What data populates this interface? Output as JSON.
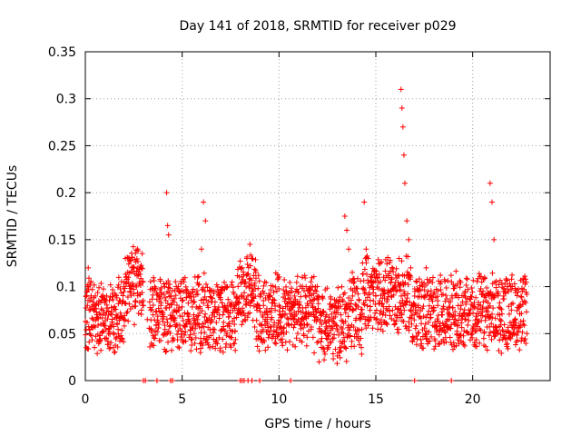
{
  "chart_data": {
    "type": "scatter",
    "title": "Day 141 of 2018, SRMTID for receiver p029",
    "xlabel": "GPS time / hours",
    "ylabel": "SRMTID / TECUs",
    "xlim": [
      0,
      24
    ],
    "ylim": [
      0,
      0.35
    ],
    "x_ticks": [
      0,
      5,
      10,
      15,
      20
    ],
    "x_tick_labels": [
      "0",
      "5",
      "10",
      "15",
      "20"
    ],
    "y_ticks": [
      0,
      0.05,
      0.1,
      0.15,
      0.2,
      0.25,
      0.3,
      0.35
    ],
    "y_tick_labels": [
      "0",
      "0.05",
      "0.1",
      "0.15",
      "0.2",
      "0.25",
      "0.3",
      "0.35"
    ],
    "grid": true,
    "marker": "+",
    "series_color": "#ff0000",
    "zero_value_times": [
      3.0,
      3.1,
      3.7,
      4.4,
      4.5,
      8.0,
      8.1,
      8.2,
      8.4,
      8.6,
      9.0,
      10.6,
      17.0,
      18.9
    ],
    "series": [
      {
        "name": "SRMTID",
        "note": "dense cloud of several thousand points; representative sample (hour, TECU)",
        "points": [
          [
            0.05,
            0.035
          ],
          [
            0.1,
            0.1
          ],
          [
            0.15,
            0.12
          ],
          [
            0.2,
            0.075
          ],
          [
            0.3,
            0.09
          ],
          [
            0.4,
            0.065
          ],
          [
            0.5,
            0.08
          ],
          [
            0.6,
            0.07
          ],
          [
            0.7,
            0.085
          ],
          [
            0.8,
            0.06
          ],
          [
            0.9,
            0.075
          ],
          [
            1.0,
            0.045
          ],
          [
            1.1,
            0.09
          ],
          [
            1.2,
            0.055
          ],
          [
            1.3,
            0.035
          ],
          [
            1.4,
            0.06
          ],
          [
            1.5,
            0.03
          ],
          [
            1.6,
            0.07
          ],
          [
            1.7,
            0.05
          ],
          [
            1.8,
            0.085
          ],
          [
            1.9,
            0.045
          ],
          [
            2.0,
            0.065
          ],
          [
            2.1,
            0.11
          ],
          [
            2.2,
            0.13
          ],
          [
            2.3,
            0.095
          ],
          [
            2.4,
            0.1
          ],
          [
            2.5,
            0.12
          ],
          [
            2.6,
            0.085
          ],
          [
            2.7,
            0.14
          ],
          [
            2.8,
            0.105
          ],
          [
            2.9,
            0.075
          ],
          [
            3.0,
            0.08
          ],
          [
            3.2,
            0.065
          ],
          [
            3.4,
            0.055
          ],
          [
            3.5,
            0.07
          ],
          [
            3.6,
            0.045
          ],
          [
            3.8,
            0.06
          ],
          [
            3.9,
            0.08
          ],
          [
            4.0,
            0.07
          ],
          [
            4.1,
            0.1
          ],
          [
            4.2,
            0.2
          ],
          [
            4.25,
            0.165
          ],
          [
            4.3,
            0.155
          ],
          [
            4.4,
            0.09
          ],
          [
            4.6,
            0.075
          ],
          [
            4.8,
            0.1
          ],
          [
            5.0,
            0.085
          ],
          [
            5.2,
            0.06
          ],
          [
            5.4,
            0.09
          ],
          [
            5.6,
            0.07
          ],
          [
            5.8,
            0.11
          ],
          [
            6.0,
            0.14
          ],
          [
            6.1,
            0.19
          ],
          [
            6.2,
            0.17
          ],
          [
            6.3,
            0.08
          ],
          [
            6.5,
            0.065
          ],
          [
            6.7,
            0.075
          ],
          [
            6.9,
            0.09
          ],
          [
            7.1,
            0.07
          ],
          [
            7.3,
            0.1
          ],
          [
            7.5,
            0.08
          ],
          [
            7.7,
            0.06
          ],
          [
            7.9,
            0.075
          ],
          [
            8.1,
            0.12
          ],
          [
            8.3,
            0.1
          ],
          [
            8.5,
            0.145
          ],
          [
            8.6,
            0.13
          ],
          [
            8.8,
            0.115
          ],
          [
            9.0,
            0.06
          ],
          [
            9.2,
            0.08
          ],
          [
            9.4,
            0.07
          ],
          [
            9.6,
            0.065
          ],
          [
            9.8,
            0.075
          ],
          [
            10.0,
            0.08
          ],
          [
            10.2,
            0.07
          ],
          [
            10.4,
            0.06
          ],
          [
            10.6,
            0.075
          ],
          [
            10.8,
            0.09
          ],
          [
            11.0,
            0.065
          ],
          [
            11.2,
            0.11
          ],
          [
            11.4,
            0.1
          ],
          [
            11.6,
            0.085
          ],
          [
            11.8,
            0.07
          ],
          [
            12.0,
            0.09
          ],
          [
            12.2,
            0.06
          ],
          [
            12.4,
            0.05
          ],
          [
            12.6,
            0.065
          ],
          [
            12.8,
            0.08
          ],
          [
            13.0,
            0.055
          ],
          [
            13.2,
            0.07
          ],
          [
            13.4,
            0.175
          ],
          [
            13.5,
            0.16
          ],
          [
            13.6,
            0.14
          ],
          [
            13.8,
            0.09
          ],
          [
            14.0,
            0.08
          ],
          [
            14.2,
            0.07
          ],
          [
            14.4,
            0.19
          ],
          [
            14.5,
            0.14
          ],
          [
            14.6,
            0.13
          ],
          [
            14.8,
            0.1
          ],
          [
            15.0,
            0.09
          ],
          [
            15.2,
            0.085
          ],
          [
            15.4,
            0.11
          ],
          [
            15.6,
            0.075
          ],
          [
            15.8,
            0.09
          ],
          [
            16.0,
            0.1
          ],
          [
            16.2,
            0.13
          ],
          [
            16.3,
            0.31
          ],
          [
            16.35,
            0.29
          ],
          [
            16.4,
            0.27
          ],
          [
            16.45,
            0.24
          ],
          [
            16.5,
            0.21
          ],
          [
            16.6,
            0.17
          ],
          [
            16.7,
            0.15
          ],
          [
            16.8,
            0.12
          ],
          [
            17.0,
            0.09
          ],
          [
            17.2,
            0.08
          ],
          [
            17.4,
            0.1
          ],
          [
            17.6,
            0.12
          ],
          [
            17.8,
            0.09
          ],
          [
            18.0,
            0.075
          ],
          [
            18.2,
            0.085
          ],
          [
            18.4,
            0.07
          ],
          [
            18.6,
            0.06
          ],
          [
            18.8,
            0.065
          ],
          [
            19.0,
            0.07
          ],
          [
            19.2,
            0.05
          ],
          [
            19.4,
            0.08
          ],
          [
            19.6,
            0.065
          ],
          [
            19.8,
            0.075
          ],
          [
            20.0,
            0.055
          ],
          [
            20.2,
            0.06
          ],
          [
            20.4,
            0.08
          ],
          [
            20.6,
            0.09
          ],
          [
            20.8,
            0.07
          ],
          [
            20.9,
            0.21
          ],
          [
            21.0,
            0.19
          ],
          [
            21.1,
            0.15
          ],
          [
            21.2,
            0.05
          ],
          [
            21.4,
            0.07
          ],
          [
            21.6,
            0.09
          ],
          [
            21.8,
            0.1
          ],
          [
            22.0,
            0.075
          ],
          [
            22.2,
            0.065
          ],
          [
            22.4,
            0.08
          ],
          [
            22.6,
            0.06
          ],
          [
            22.8,
            0.05
          ]
        ]
      }
    ]
  }
}
